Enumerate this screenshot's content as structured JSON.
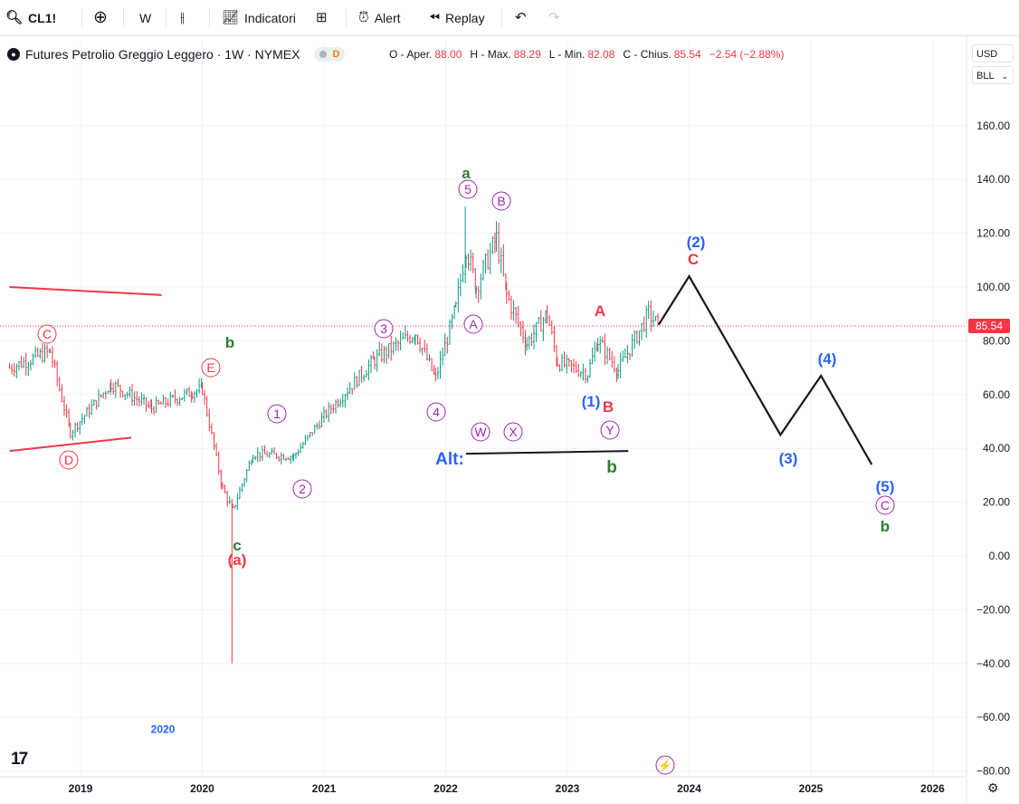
{
  "toolbar": {
    "symbol": "CL1!",
    "interval": "W",
    "indicators": "Indicatori",
    "alert": "Alert",
    "replay": "Replay"
  },
  "legend": {
    "title": "Futures Petrolio Greggio Leggero · 1W · NYMEX",
    "badge": "D",
    "ohlc": {
      "o_label": "O - Aper.",
      "o": "88.00",
      "h_label": "H - Max.",
      "h": "88.29",
      "l_label": "L - Min.",
      "l": "82.08",
      "c_label": "C - Chius.",
      "c": "85.54",
      "change": "−2.54 (−2.88%)"
    }
  },
  "scale": {
    "currency": "USD",
    "unit": "BLL"
  },
  "price_axis": [
    "160.00",
    "140.00",
    "120.00",
    "100.00",
    "80.00",
    "60.00",
    "40.00",
    "20.00",
    "0.00",
    "−20.00",
    "−40.00",
    "−60.00",
    "−80.00"
  ],
  "time_axis": [
    "2019",
    "2020",
    "2021",
    "2022",
    "2023",
    "2024",
    "2025",
    "2026"
  ],
  "last_price": "85.54",
  "colors": {
    "down": "#f23645",
    "up": "#089981",
    "purple": "#9c27b0",
    "blue": "#2962ff",
    "green": "#2e7d32",
    "red": "#f23645"
  },
  "wave_labels": [
    {
      "t": "C",
      "style": "circle",
      "color": "red"
    },
    {
      "t": "D",
      "style": "circle",
      "color": "red"
    },
    {
      "t": "E",
      "style": "circle",
      "color": "red"
    },
    {
      "t": "b",
      "style": "plain",
      "color": "green"
    },
    {
      "t": "c",
      "style": "plain",
      "color": "green"
    },
    {
      "t": "(a)",
      "style": "plain",
      "color": "red"
    },
    {
      "t": "1",
      "style": "circle",
      "color": "purple"
    },
    {
      "t": "2",
      "style": "circle",
      "color": "purple"
    },
    {
      "t": "3",
      "style": "circle",
      "color": "purple"
    },
    {
      "t": "4",
      "style": "circle",
      "color": "purple"
    },
    {
      "t": "a",
      "style": "plain",
      "color": "green"
    },
    {
      "t": "5",
      "style": "circle",
      "color": "purple"
    },
    {
      "t": "B",
      "style": "circle",
      "color": "purple"
    },
    {
      "t": "A",
      "style": "circle",
      "color": "purple"
    },
    {
      "t": "W",
      "style": "circle",
      "color": "purple"
    },
    {
      "t": "X",
      "style": "circle",
      "color": "purple"
    },
    {
      "t": "Y",
      "style": "circle",
      "color": "purple"
    },
    {
      "t": "A",
      "style": "plain",
      "color": "red"
    },
    {
      "t": "(1)",
      "style": "plain",
      "color": "blue"
    },
    {
      "t": "B",
      "style": "plain",
      "color": "red"
    },
    {
      "t": "Alt:",
      "style": "plain",
      "color": "blue"
    },
    {
      "t": "b",
      "style": "plain",
      "color": "green"
    },
    {
      "t": "(2)",
      "style": "plain",
      "color": "blue"
    },
    {
      "t": "C",
      "style": "plain",
      "color": "red"
    },
    {
      "t": "(3)",
      "style": "plain",
      "color": "blue"
    },
    {
      "t": "(4)",
      "style": "plain",
      "color": "blue"
    },
    {
      "t": "(5)",
      "style": "plain",
      "color": "blue"
    },
    {
      "t": "C",
      "style": "circle",
      "color": "purple"
    },
    {
      "t": "b",
      "style": "plain",
      "color": "green"
    },
    {
      "t": "2020",
      "style": "plain",
      "color": "blue"
    }
  ],
  "chart_data": {
    "type": "candlestick",
    "symbol": "CL1!",
    "ylim": [
      -80,
      170
    ],
    "x_range": [
      "2018-06",
      "2026-06"
    ],
    "grid": true,
    "last_close": 85.54,
    "approx_weekly_path": [
      {
        "date": "2018-06",
        "close": 70
      },
      {
        "date": "2018-10",
        "close": 76
      },
      {
        "date": "2018-12",
        "close": 46
      },
      {
        "date": "2019-04",
        "close": 64
      },
      {
        "date": "2019-08",
        "close": 55
      },
      {
        "date": "2019-12",
        "close": 61
      },
      {
        "date": "2020-01",
        "close": 62
      },
      {
        "date": "2020-03",
        "close": 25
      },
      {
        "date": "2020-04",
        "close": 17,
        "low": -40
      },
      {
        "date": "2020-06",
        "close": 38
      },
      {
        "date": "2020-10",
        "close": 37
      },
      {
        "date": "2021-01",
        "close": 52
      },
      {
        "date": "2021-06",
        "close": 73
      },
      {
        "date": "2021-10",
        "close": 83
      },
      {
        "date": "2021-12",
        "close": 66
      },
      {
        "date": "2022-02",
        "close": 92
      },
      {
        "date": "2022-03",
        "close": 115,
        "high": 130
      },
      {
        "date": "2022-04",
        "close": 100
      },
      {
        "date": "2022-06",
        "close": 118
      },
      {
        "date": "2022-07",
        "close": 97
      },
      {
        "date": "2022-09",
        "close": 79
      },
      {
        "date": "2022-11",
        "close": 90
      },
      {
        "date": "2022-12",
        "close": 72
      },
      {
        "date": "2023-03",
        "close": 68
      },
      {
        "date": "2023-04",
        "close": 80
      },
      {
        "date": "2023-06",
        "close": 69
      },
      {
        "date": "2023-09",
        "close": 90
      },
      {
        "date": "2023-10",
        "close": 85.54
      }
    ],
    "projection_path": [
      {
        "date": "2023-10",
        "value": 86
      },
      {
        "date": "2024-01",
        "value": 104
      },
      {
        "date": "2024-10",
        "value": 45
      },
      {
        "date": "2025-02",
        "value": 67
      },
      {
        "date": "2025-07",
        "value": 34
      }
    ],
    "trendlines": [
      {
        "from": {
          "date": "2018-06",
          "value": 100
        },
        "to": {
          "date": "2019-09",
          "value": 97
        },
        "color": "red"
      },
      {
        "from": {
          "date": "2018-06",
          "value": 39
        },
        "to": {
          "date": "2019-06",
          "value": 44
        },
        "color": "red"
      },
      {
        "from": {
          "date": "2022-03",
          "value": 38
        },
        "to": {
          "date": "2023-07",
          "value": 39
        },
        "color": "black"
      }
    ]
  }
}
